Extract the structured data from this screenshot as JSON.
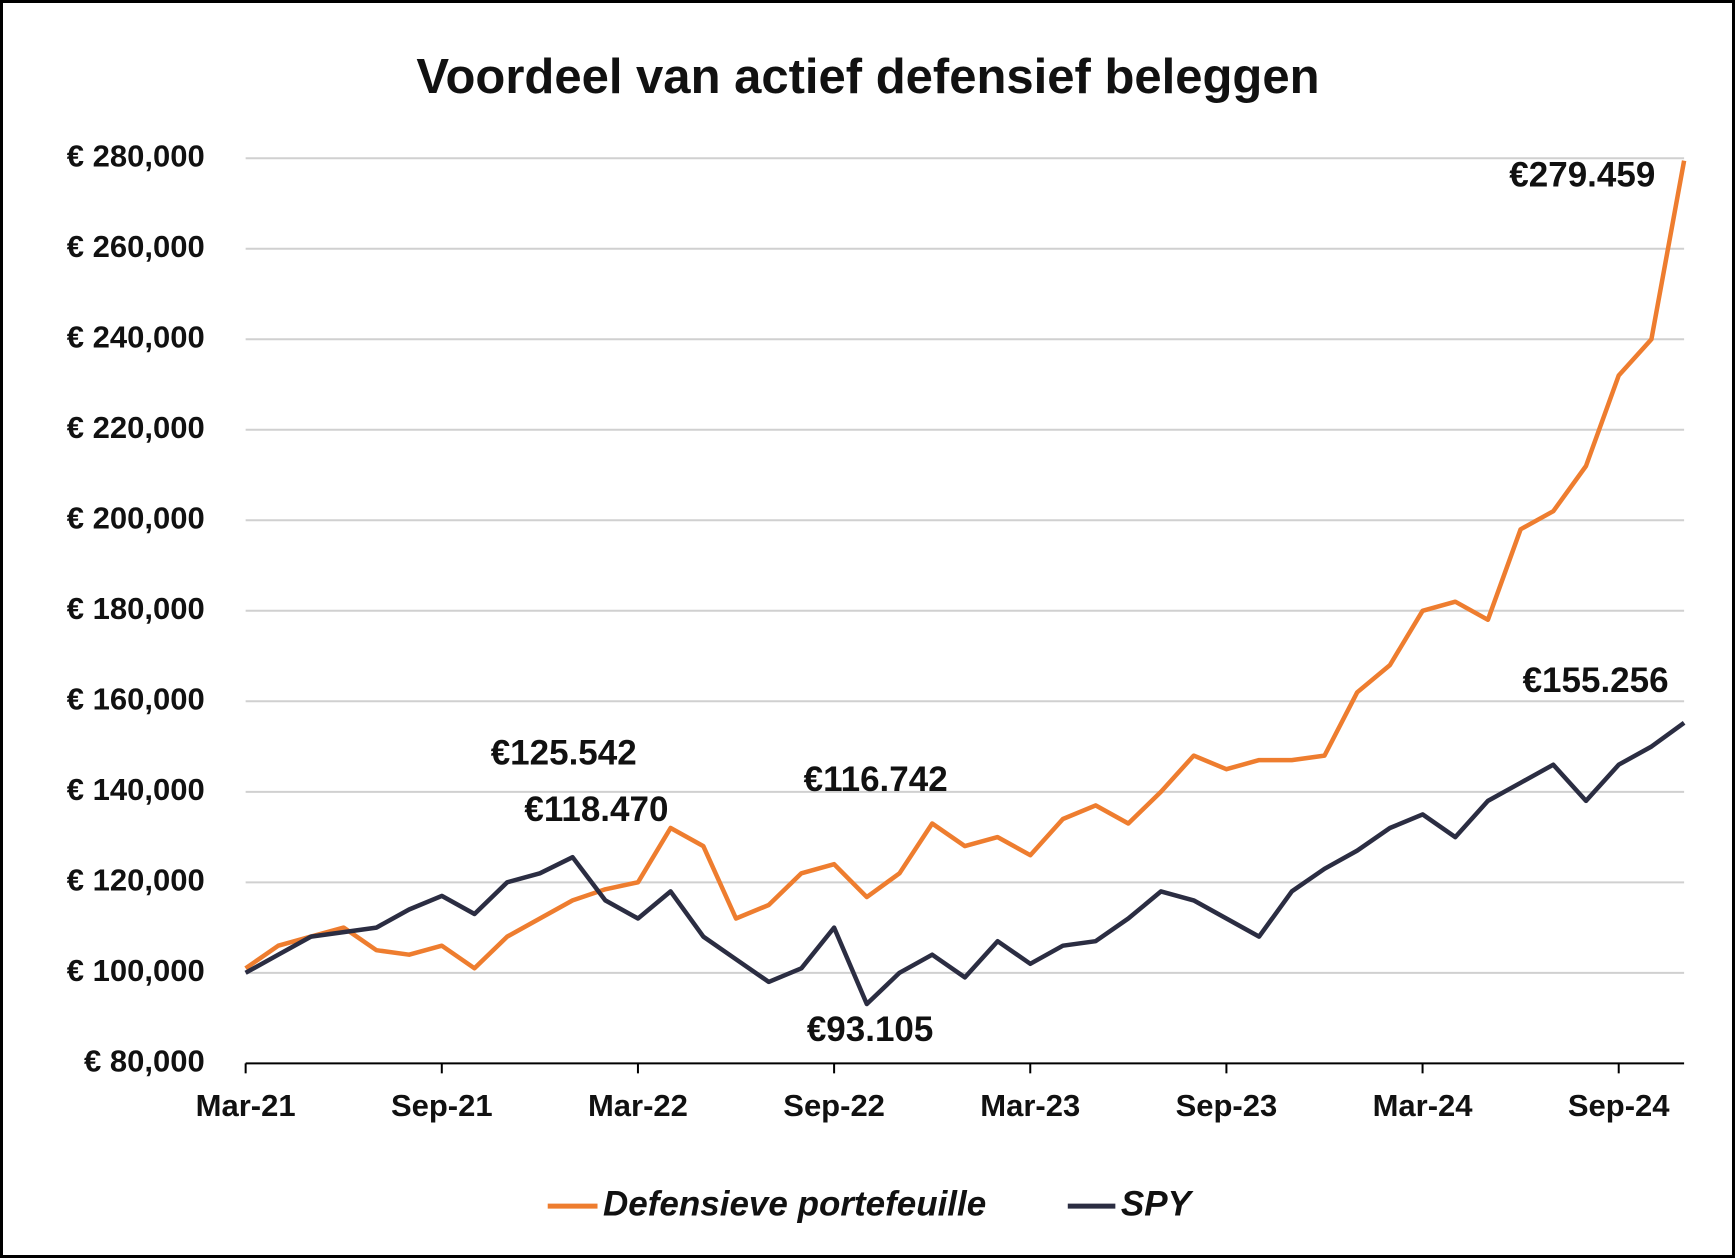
{
  "chart_data": {
    "type": "line",
    "title": "Voordeel van actief defensief beleggen",
    "categories": [
      "Mar-21",
      null,
      null,
      null,
      null,
      null,
      "Sep-21",
      null,
      null,
      null,
      null,
      null,
      "Mar-22",
      null,
      null,
      null,
      null,
      null,
      "Sep-22",
      null,
      null,
      null,
      null,
      null,
      "Mar-23",
      null,
      null,
      null,
      null,
      null,
      "Sep-23",
      null,
      null,
      null,
      null,
      null,
      "Mar-24",
      null,
      null,
      null,
      null,
      null,
      "Sep-24",
      null,
      null
    ],
    "series": [
      {
        "name": "Defensieve portefeuille",
        "color": "#ee7d2f",
        "values": [
          101000,
          106000,
          108000,
          110000,
          105000,
          104000,
          106000,
          101000,
          108000,
          112000,
          116000,
          118470,
          120000,
          132000,
          128000,
          112000,
          115000,
          122000,
          124000,
          116742,
          122000,
          133000,
          128000,
          130000,
          126000,
          134000,
          137000,
          133000,
          140000,
          148000,
          145000,
          147000,
          147000,
          148000,
          162000,
          168000,
          180000,
          182000,
          178000,
          198000,
          202000,
          212000,
          232000,
          240000,
          279459
        ]
      },
      {
        "name": "SPY",
        "color": "#2b2d42",
        "values": [
          100000,
          104000,
          108000,
          109000,
          110000,
          114000,
          117000,
          113000,
          120000,
          122000,
          125542,
          116000,
          112000,
          118000,
          108000,
          103000,
          98000,
          101000,
          110000,
          93105,
          100000,
          104000,
          99000,
          107000,
          102000,
          106000,
          107000,
          112000,
          118000,
          116000,
          112000,
          108000,
          118000,
          123000,
          127000,
          132000,
          135000,
          130000,
          138000,
          142000,
          146000,
          138000,
          146000,
          150000,
          155256
        ]
      }
    ],
    "annotations": [
      {
        "text": "€279.459",
        "series": 0,
        "value": 279459
      },
      {
        "text": "€118.470",
        "series": 0,
        "value": 118470
      },
      {
        "text": "€116.742",
        "series": 0,
        "value": 116742
      },
      {
        "text": "€125.542",
        "series": 1,
        "value": 125542
      },
      {
        "text": "€93.105",
        "series": 1,
        "value": 93105
      },
      {
        "text": "€155.256",
        "series": 1,
        "value": 155256
      }
    ],
    "ylim": [
      80000,
      280000
    ],
    "yticks": [
      {
        "value": 80000,
        "label": "€ 80,000"
      },
      {
        "value": 100000,
        "label": "€ 100,000"
      },
      {
        "value": 120000,
        "label": "€ 120,000"
      },
      {
        "value": 140000,
        "label": "€ 140,000"
      },
      {
        "value": 160000,
        "label": "€ 160,000"
      },
      {
        "value": 180000,
        "label": "€ 180,000"
      },
      {
        "value": 200000,
        "label": "€ 200,000"
      },
      {
        "value": 220000,
        "label": "€ 220,000"
      },
      {
        "value": 240000,
        "label": "€ 240,000"
      },
      {
        "value": 260000,
        "label": "€ 260,000"
      },
      {
        "value": 280000,
        "label": "€ 280,000"
      }
    ],
    "grid": true
  }
}
